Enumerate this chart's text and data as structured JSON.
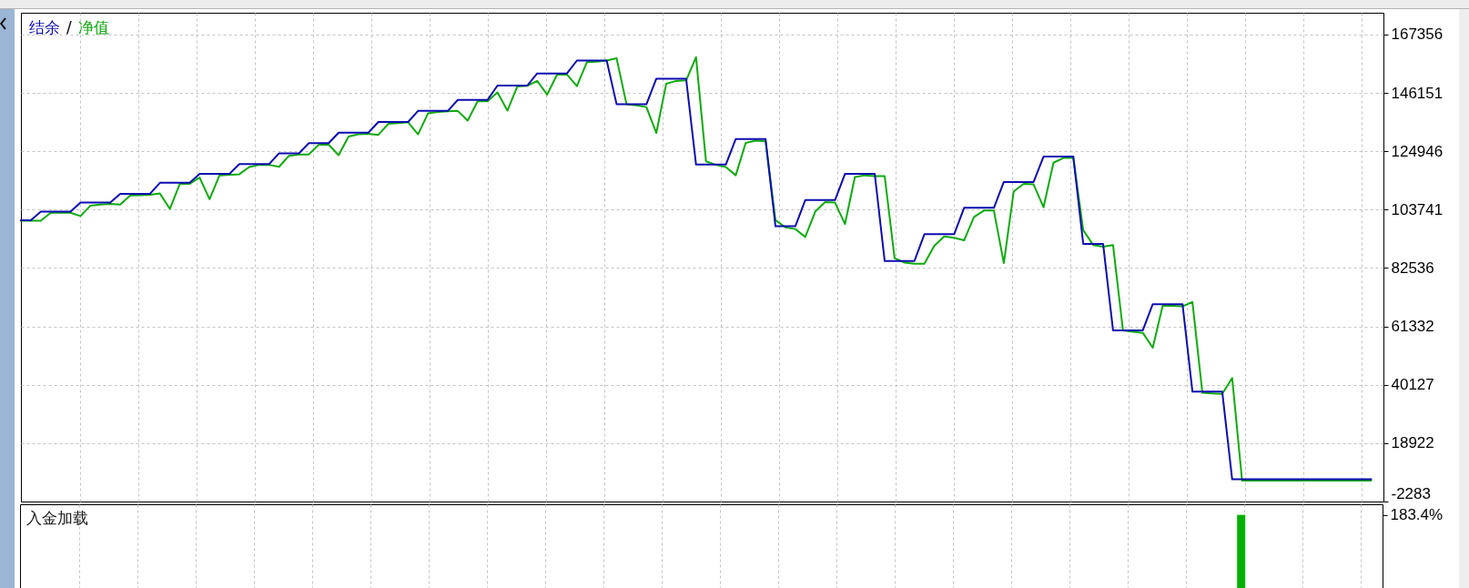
{
  "chart_data": [
    {
      "type": "line",
      "categories": [
        null,
        null,
        null,
        null,
        null,
        null,
        null,
        null,
        null,
        null,
        null,
        null,
        null,
        null,
        null,
        null,
        null,
        null,
        null,
        null,
        null,
        null,
        null,
        null,
        null,
        null,
        null,
        null,
        null,
        null,
        null,
        null,
        null,
        null,
        null,
        null,
        null,
        null,
        null,
        null,
        null,
        null,
        null,
        null,
        null,
        null,
        null,
        null,
        null,
        null,
        null,
        null,
        null,
        null,
        null,
        null,
        null,
        null,
        null,
        null,
        null,
        null,
        null,
        null,
        null,
        null,
        null,
        null,
        null,
        null,
        null,
        null,
        null,
        null,
        null,
        null,
        null,
        null,
        null,
        null,
        null,
        null,
        null,
        null,
        null,
        null,
        null,
        null,
        null,
        null,
        null,
        null,
        null,
        null,
        null,
        null,
        null,
        null,
        null,
        null,
        null,
        null,
        null,
        null,
        null,
        null,
        null,
        null,
        null,
        null,
        null,
        null,
        null,
        null,
        null,
        null,
        null,
        null,
        null,
        null,
        null,
        null,
        null,
        null,
        null,
        null,
        null,
        null,
        null,
        null,
        null,
        null,
        null,
        null,
        null,
        null,
        null
      ],
      "series": [
        {
          "name": "结余",
          "color": "#0c0cb0",
          "values": [
            99900,
            99900,
            103000,
            103000,
            103000,
            103000,
            106300,
            106300,
            106300,
            106300,
            109500,
            109500,
            109500,
            109500,
            113500,
            113500,
            113500,
            113500,
            116700,
            116700,
            116700,
            116700,
            120300,
            120300,
            120300,
            120300,
            124200,
            124200,
            124200,
            127900,
            127900,
            127900,
            131700,
            131700,
            131700,
            131700,
            135600,
            135600,
            135600,
            135600,
            139600,
            139600,
            139600,
            139600,
            143600,
            143600,
            143600,
            143600,
            148800,
            148800,
            148800,
            148800,
            153200,
            153200,
            153200,
            153200,
            157900,
            157900,
            157900,
            157900,
            142000,
            142000,
            142000,
            142000,
            151300,
            151300,
            151300,
            151300,
            120100,
            120100,
            120100,
            120100,
            129400,
            129400,
            129400,
            129400,
            97700,
            97700,
            97700,
            107200,
            107200,
            107200,
            107200,
            116700,
            116700,
            116700,
            116700,
            85100,
            85100,
            85100,
            85100,
            94800,
            94800,
            94800,
            94800,
            104400,
            104400,
            104400,
            104400,
            113800,
            113800,
            113800,
            113800,
            123000,
            123000,
            123000,
            123000,
            91300,
            91300,
            91300,
            59900,
            59900,
            59900,
            59900,
            69400,
            69400,
            69400,
            69400,
            37600,
            37600,
            37600,
            37600,
            5800,
            5800,
            5800,
            5800,
            5800,
            5800,
            5800,
            5800,
            5800,
            5800,
            5800,
            5800,
            5800,
            5800,
            5800
          ]
        },
        {
          "name": "净值",
          "color": "#10aa10",
          "values": [
            99700,
            99700,
            99700,
            102600,
            102600,
            102600,
            101400,
            105200,
            105600,
            105800,
            105600,
            108900,
            109000,
            109100,
            109600,
            104000,
            113100,
            113100,
            115400,
            107500,
            116200,
            116400,
            116600,
            119200,
            120000,
            120000,
            119300,
            123300,
            123800,
            123800,
            127300,
            127300,
            123500,
            130300,
            131100,
            131300,
            130900,
            134900,
            135200,
            135500,
            131100,
            138700,
            139200,
            139500,
            139600,
            136100,
            143100,
            143100,
            146300,
            139700,
            148500,
            148700,
            150500,
            145500,
            152800,
            152800,
            148600,
            157300,
            157500,
            157900,
            158700,
            142000,
            141600,
            141000,
            131600,
            149500,
            150500,
            150700,
            159100,
            121300,
            120000,
            119200,
            116200,
            128000,
            128800,
            128600,
            99900,
            97300,
            96700,
            93800,
            103000,
            106500,
            106300,
            98500,
            115600,
            116200,
            115900,
            115900,
            86100,
            84500,
            84100,
            84100,
            90600,
            94000,
            93500,
            92600,
            101100,
            103400,
            103400,
            84300,
            110400,
            113100,
            112900,
            104600,
            120800,
            122500,
            122500,
            96300,
            90900,
            90300,
            90900,
            59900,
            59400,
            59000,
            53600,
            68800,
            68800,
            68600,
            70200,
            37200,
            37000,
            36800,
            42600,
            5300,
            5300,
            5300,
            5300,
            5300,
            5300,
            5300,
            5300,
            5300,
            5300,
            5300,
            5300,
            5300,
            5300
          ]
        }
      ],
      "ylim": [
        -2283,
        175260
      ],
      "yticks": [
        -2283,
        18922,
        40127,
        61332,
        82536,
        103741,
        124946,
        146151,
        167356
      ],
      "grid": true,
      "legend": "top left",
      "tick_labels": "y",
      "annotations": [
        "/"
      ]
    },
    {
      "type": "bar",
      "title": "入金加载",
      "categories": [
        null,
        null,
        null,
        null,
        null,
        null,
        null,
        null,
        null,
        null,
        null,
        null,
        null,
        null,
        null,
        null,
        null,
        null,
        null,
        null,
        null,
        null,
        null,
        null,
        null,
        null,
        null,
        null,
        null,
        null,
        null,
        null,
        null,
        null,
        null,
        null,
        null,
        null,
        null,
        null,
        null,
        null,
        null,
        null,
        null,
        null,
        null,
        null,
        null,
        null,
        null,
        null,
        null,
        null,
        null,
        null,
        null,
        null,
        null,
        null,
        null,
        null,
        null,
        null,
        null,
        null,
        null,
        null,
        null,
        null,
        null,
        null,
        null,
        null,
        null,
        null,
        null,
        null,
        null,
        null,
        null,
        null,
        null,
        null,
        null,
        null,
        null,
        null,
        null,
        null,
        null,
        null,
        null,
        null,
        null,
        null,
        null,
        null,
        null,
        null,
        null,
        null,
        null,
        null,
        null,
        null,
        null,
        null,
        null,
        null,
        null,
        null,
        null,
        null,
        null,
        null,
        null,
        null,
        null,
        null,
        null,
        null,
        null,
        null,
        null,
        null,
        null,
        null,
        null,
        null,
        null,
        null,
        null,
        null,
        null,
        null,
        null
      ],
      "values": [
        null,
        null,
        null,
        null,
        null,
        null,
        null,
        null,
        null,
        null,
        null,
        null,
        null,
        null,
        null,
        null,
        null,
        null,
        null,
        null,
        null,
        null,
        null,
        null,
        null,
        null,
        null,
        null,
        null,
        null,
        null,
        null,
        null,
        null,
        null,
        null,
        null,
        null,
        null,
        null,
        null,
        null,
        null,
        null,
        null,
        null,
        null,
        null,
        null,
        null,
        null,
        null,
        null,
        null,
        null,
        null,
        null,
        null,
        null,
        null,
        null,
        null,
        null,
        null,
        null,
        null,
        null,
        null,
        null,
        null,
        null,
        null,
        null,
        null,
        null,
        null,
        null,
        null,
        null,
        null,
        null,
        null,
        null,
        null,
        null,
        null,
        null,
        null,
        null,
        null,
        null,
        null,
        null,
        null,
        null,
        null,
        null,
        null,
        null,
        null,
        null,
        null,
        null,
        null,
        null,
        null,
        null,
        null,
        null,
        null,
        null,
        null,
        null,
        null,
        null,
        null,
        null,
        null,
        null,
        null,
        null,
        null,
        null,
        183.4,
        null,
        null,
        null,
        null,
        null,
        null,
        null,
        null,
        null,
        null,
        null,
        null,
        null
      ],
      "color": "#00b000",
      "ylim": [
        0,
        210
      ],
      "yticks": [
        {
          "value": 183.4,
          "label": "183.4%"
        }
      ],
      "grid": "x",
      "tick_labels": "y"
    }
  ]
}
